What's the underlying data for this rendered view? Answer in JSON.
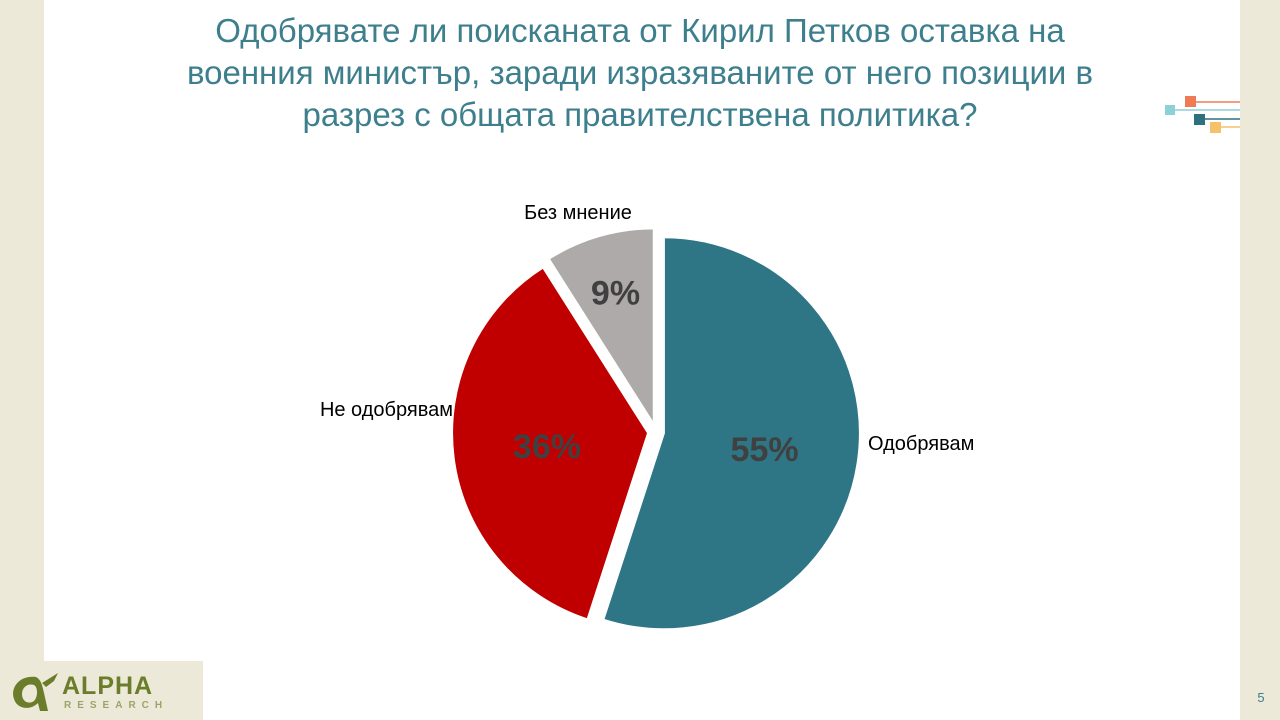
{
  "title_lines": [
    "Одобрявате ли поисканата от Кирил Петков оставка на",
    "военния министър, заради изразяваните от него позиции в",
    "разрез с общата правителствена политика?"
  ],
  "chart_data": {
    "type": "pie",
    "title": "Одобрявате ли поисканата от Кирил Петков оставка на военния министър, заради изразяваните от него позиции в разрез с общата правителствена политика?",
    "categories": [
      "Одобрявам",
      "Не одобрявам",
      "Без мнение"
    ],
    "values": [
      55,
      36,
      9
    ],
    "value_labels": [
      "55%",
      "36%",
      "9%"
    ],
    "colors": [
      "#2e7586",
      "#c00000",
      "#aeaaaa"
    ],
    "exploded": true,
    "start_angle": "12 o'clock, clockwise",
    "legend": "none (category labels next to slices)"
  },
  "logo": {
    "name": "ALPHA",
    "sub": "RESEARCH",
    "mark": "Ơr",
    "brand_color": "#6b7d2a"
  },
  "page_number": "5",
  "colors": {
    "title": "#3d7f8d",
    "frame": "#ede9d8",
    "deco_squares": [
      "#8fcfd8",
      "#ef7b56",
      "#2e6f80",
      "#f5c26b"
    ]
  }
}
